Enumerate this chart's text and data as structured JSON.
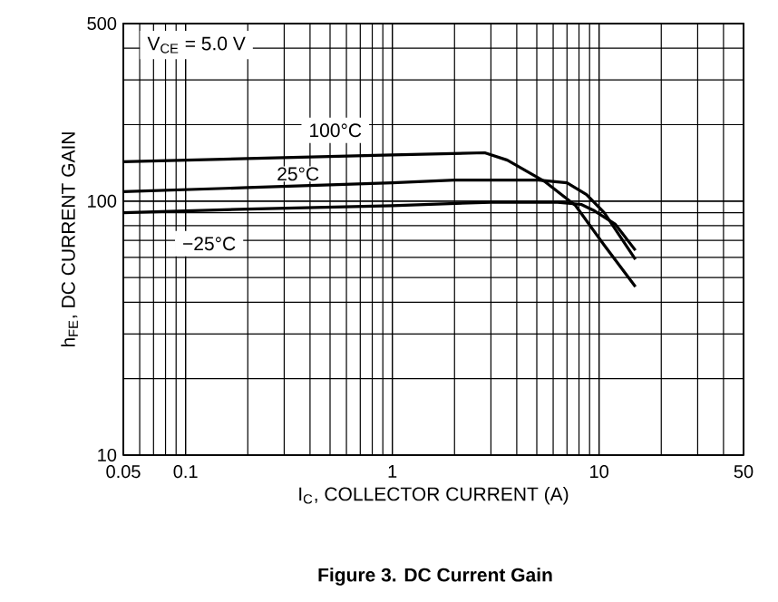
{
  "chart_data": {
    "type": "line",
    "title": "Figure 3. DC Current Gain",
    "xlabel": "I$_{C}$, COLLECTOR CURRENT (A)",
    "ylabel": "h$_{FE}$, DC CURRENT GAIN",
    "annotations": [
      "V$_{CE}$ = 5.0 V"
    ],
    "series": [
      {
        "name": "100°C",
        "color": "#000000",
        "x": [
          0.05,
          0.2,
          1,
          2.8,
          3.6,
          5.5,
          7.7,
          10.6,
          15
        ],
        "values": [
          143,
          147,
          152,
          155,
          145,
          119,
          96,
          67,
          46
        ]
      },
      {
        "name": "25°C",
        "color": "#000000",
        "x": [
          0.05,
          0.2,
          1,
          2,
          5.1,
          7,
          8.7,
          10.6,
          15
        ],
        "values": [
          109,
          113,
          118,
          121,
          121,
          118,
          106,
          90,
          59
        ]
      },
      {
        "name": "−25°C",
        "color": "#000000",
        "x": [
          0.05,
          0.2,
          1,
          3,
          6.3,
          8.2,
          9.4,
          12,
          15
        ],
        "values": [
          90,
          93,
          96,
          99,
          99,
          97,
          92,
          81,
          64
        ]
      }
    ],
    "xlim": [
      0.05,
      50
    ],
    "ylim": [
      10,
      500
    ],
    "xticks": [
      0.05,
      0.1,
      1,
      10,
      50
    ],
    "yticks": [
      10,
      100,
      500
    ],
    "log": "xy",
    "grid": true,
    "marker": "none",
    "line_style": "solid"
  }
}
